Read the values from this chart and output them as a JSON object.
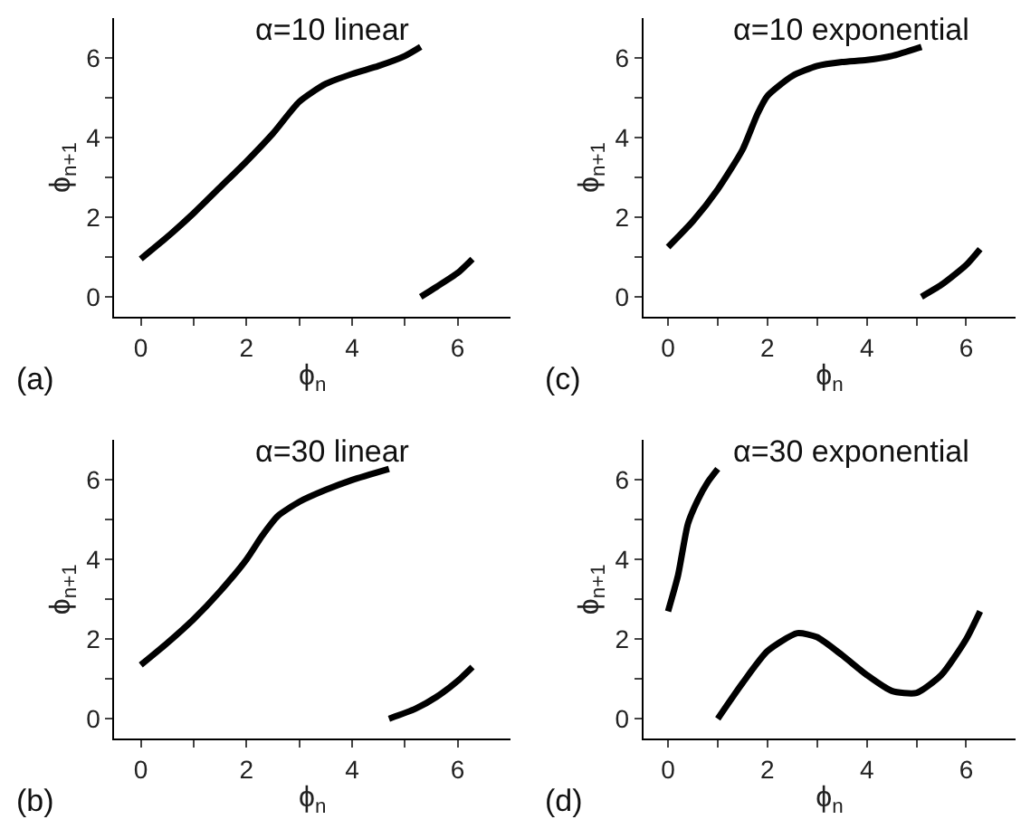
{
  "chart_data": [
    {
      "type": "line",
      "title": "α=10 linear",
      "xlabel": "ϕ$_{n}$",
      "ylabel": "ϕ$_{n+1}$",
      "annotations": [
        "(a)"
      ],
      "xlim": [
        -0.5,
        7
      ],
      "ylim": [
        -0.5,
        7
      ],
      "xticks": [
        0,
        {
          "value": 1,
          "label": null
        },
        2,
        {
          "value": 3,
          "label": null
        },
        4,
        {
          "value": 5,
          "label": null
        },
        6
      ],
      "yticks": [
        0,
        {
          "value": 1,
          "label": null
        },
        2,
        {
          "value": 3,
          "label": null
        },
        4,
        {
          "value": 5,
          "label": null
        },
        6
      ],
      "line_style": "solid",
      "marker": "none",
      "series": [
        {
          "color": "#000000",
          "x": [
            0,
            0.5,
            1,
            1.5,
            2,
            2.5,
            3,
            3.5,
            4,
            4.5,
            5,
            5.3
          ],
          "values": [
            0.95,
            1.5,
            2.1,
            2.75,
            3.4,
            4.1,
            4.9,
            5.35,
            5.6,
            5.8,
            6.05,
            6.28
          ]
        },
        {
          "color": "#000000",
          "x": [
            5.3,
            5.6,
            6,
            6.28
          ],
          "values": [
            0,
            0.25,
            0.6,
            0.95
          ]
        }
      ]
    },
    {
      "type": "line",
      "title": "α=10 exponential",
      "xlabel": "ϕ$_{n}$",
      "ylabel": "ϕ$_{n+1}$",
      "annotations": [
        "(c)"
      ],
      "xlim": [
        -0.5,
        7
      ],
      "ylim": [
        -0.5,
        7
      ],
      "xticks": [
        0,
        {
          "value": 1,
          "label": null
        },
        2,
        {
          "value": 3,
          "label": null
        },
        4,
        {
          "value": 5,
          "label": null
        },
        6
      ],
      "yticks": [
        0,
        {
          "value": 1,
          "label": null
        },
        2,
        {
          "value": 3,
          "label": null
        },
        4,
        {
          "value": 5,
          "label": null
        },
        6
      ],
      "line_style": "solid",
      "marker": "none",
      "series": [
        {
          "color": "#000000",
          "x": [
            0,
            0.5,
            1,
            1.5,
            1.8,
            2,
            2.5,
            3,
            3.5,
            4,
            4.5,
            5.1
          ],
          "values": [
            1.25,
            1.9,
            2.7,
            3.7,
            4.6,
            5.05,
            5.55,
            5.8,
            5.9,
            5.95,
            6.05,
            6.28
          ]
        },
        {
          "color": "#000000",
          "x": [
            5.1,
            5.5,
            6,
            6.28
          ],
          "values": [
            0,
            0.3,
            0.8,
            1.2
          ]
        }
      ]
    },
    {
      "type": "line",
      "title": "α=30 linear",
      "xlabel": "ϕ$_{n}$",
      "ylabel": "ϕ$_{n+1}$",
      "annotations": [
        "(b)"
      ],
      "xlim": [
        -0.5,
        7
      ],
      "ylim": [
        -0.5,
        7
      ],
      "xticks": [
        0,
        {
          "value": 1,
          "label": null
        },
        2,
        {
          "value": 3,
          "label": null
        },
        4,
        {
          "value": 5,
          "label": null
        },
        6
      ],
      "yticks": [
        0,
        {
          "value": 1,
          "label": null
        },
        2,
        {
          "value": 3,
          "label": null
        },
        4,
        {
          "value": 5,
          "label": null
        },
        6
      ],
      "line_style": "solid",
      "marker": "none",
      "series": [
        {
          "color": "#000000",
          "x": [
            0,
            0.5,
            1,
            1.5,
            2,
            2.3,
            2.6,
            3,
            3.5,
            4,
            4.7
          ],
          "values": [
            1.35,
            1.9,
            2.5,
            3.2,
            4.0,
            4.6,
            5.1,
            5.45,
            5.75,
            6.0,
            6.28
          ]
        },
        {
          "color": "#000000",
          "x": [
            4.7,
            5.2,
            5.6,
            6,
            6.28
          ],
          "values": [
            0,
            0.25,
            0.55,
            0.95,
            1.3
          ]
        }
      ]
    },
    {
      "type": "line",
      "title": "α=30 exponential",
      "xlabel": "ϕ$_{n}$",
      "ylabel": "ϕ$_{n+1}$",
      "annotations": [
        "(d)"
      ],
      "xlim": [
        -0.5,
        7
      ],
      "ylim": [
        -0.5,
        7
      ],
      "xticks": [
        0,
        {
          "value": 1,
          "label": null
        },
        2,
        {
          "value": 3,
          "label": null
        },
        4,
        {
          "value": 5,
          "label": null
        },
        6
      ],
      "yticks": [
        0,
        {
          "value": 1,
          "label": null
        },
        2,
        {
          "value": 3,
          "label": null
        },
        4,
        {
          "value": 5,
          "label": null
        },
        6
      ],
      "line_style": "solid",
      "marker": "none",
      "series": [
        {
          "color": "#000000",
          "x": [
            0,
            0.2,
            0.4,
            0.6,
            0.8,
            1.0
          ],
          "values": [
            2.7,
            3.6,
            4.9,
            5.5,
            5.95,
            6.28
          ]
        },
        {
          "color": "#000000",
          "x": [
            1.0,
            1.5,
            2,
            2.6,
            3,
            3.5,
            4,
            4.5,
            5,
            5.5,
            6,
            6.28
          ],
          "values": [
            0,
            0.9,
            1.7,
            2.15,
            2.05,
            1.6,
            1.1,
            0.7,
            0.65,
            1.1,
            2.0,
            2.7
          ]
        }
      ]
    }
  ]
}
